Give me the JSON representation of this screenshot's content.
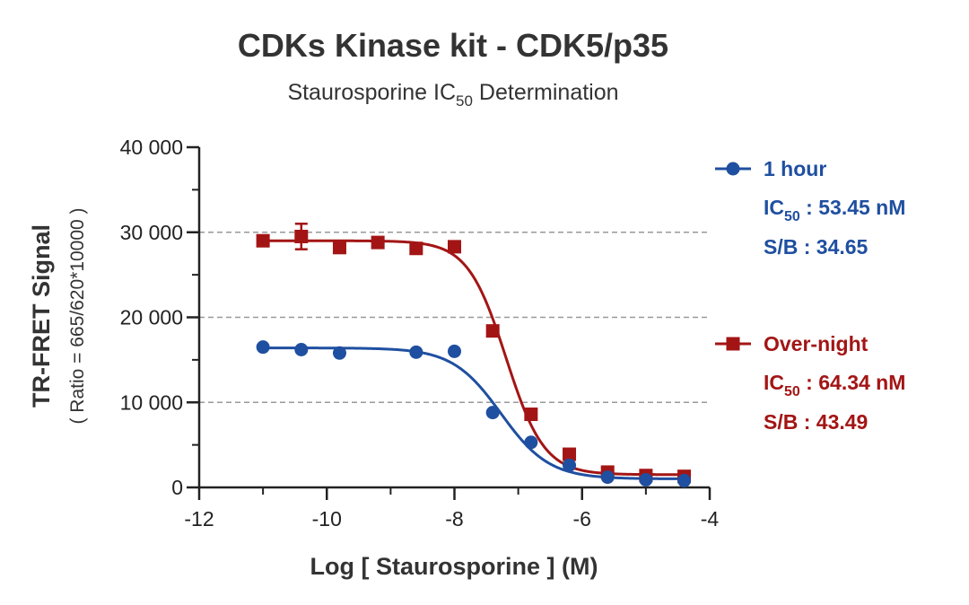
{
  "colors": {
    "series_1hour": "#1f4fa0",
    "series_overnight": "#a31515",
    "axis": "#222222",
    "grid": "#999999",
    "text": "#333333"
  },
  "chart_data": {
    "type": "scatter",
    "title": "CDKs Kinase kit  -  CDK5/p35",
    "subtitle": {
      "prefix": "Staurosporine IC",
      "sub": "50",
      "suffix": " Determination"
    },
    "xlabel": "Log [ Staurosporine ]  (M)",
    "ylabel": "TR-FRET Signal",
    "ylabel_sub": "( Ratio = 665/620*10000 )",
    "xlim": [
      -12,
      -4
    ],
    "ylim": [
      0,
      40000
    ],
    "x_ticks": [
      -12,
      -10,
      -8,
      -6,
      -4
    ],
    "x_tick_labels": [
      "-12",
      "-10",
      "-8",
      "-6",
      "-4"
    ],
    "y_ticks": [
      0,
      10000,
      20000,
      30000,
      40000
    ],
    "y_tick_labels": [
      "0",
      "10 000",
      "20 000",
      "30 000",
      "40 000"
    ],
    "grid": "horizontal dashed at 10 000, 20 000, 30 000",
    "legend_position": "right",
    "series": [
      {
        "name": "1 hour",
        "marker": "circle",
        "color": "#1f4fa0",
        "x": [
          -11.0,
          -10.4,
          -9.8,
          -8.6,
          -8.0,
          -7.4,
          -6.8,
          -6.2,
          -5.6,
          -5.0,
          -4.4
        ],
        "y": [
          16500,
          16200,
          15800,
          15900,
          16000,
          8800,
          5300,
          2600,
          1200,
          900,
          800
        ],
        "fit": {
          "top": 16400,
          "bottom": 1000,
          "logIC50": -7.272,
          "hill": 1.15
        },
        "legend_lines": [
          {
            "prefix": "IC",
            "sub": "50",
            "suffix": " : 53.45 nM"
          },
          {
            "prefix": "S/B : 34.65",
            "sub": "",
            "suffix": ""
          }
        ]
      },
      {
        "name": "Over-night",
        "marker": "square",
        "color": "#a31515",
        "x": [
          -11.0,
          -10.4,
          -9.8,
          -9.2,
          -8.6,
          -8.0,
          -7.4,
          -6.8,
          -6.2,
          -5.6,
          -5.0,
          -4.4
        ],
        "y": [
          29000,
          29500,
          28200,
          28800,
          28100,
          28300,
          18400,
          8600,
          3900,
          1800,
          1400,
          1300
        ],
        "error": [
          null,
          1500,
          null,
          null,
          null,
          null,
          null,
          null,
          null,
          null,
          null,
          null
        ],
        "fit": {
          "top": 29000,
          "bottom": 1500,
          "logIC50": -7.192,
          "hill": 1.45
        },
        "legend_lines": [
          {
            "prefix": "IC",
            "sub": "50",
            "suffix": " : 64.34 nM"
          },
          {
            "prefix": "S/B : 43.49",
            "sub": "",
            "suffix": ""
          }
        ]
      }
    ]
  }
}
